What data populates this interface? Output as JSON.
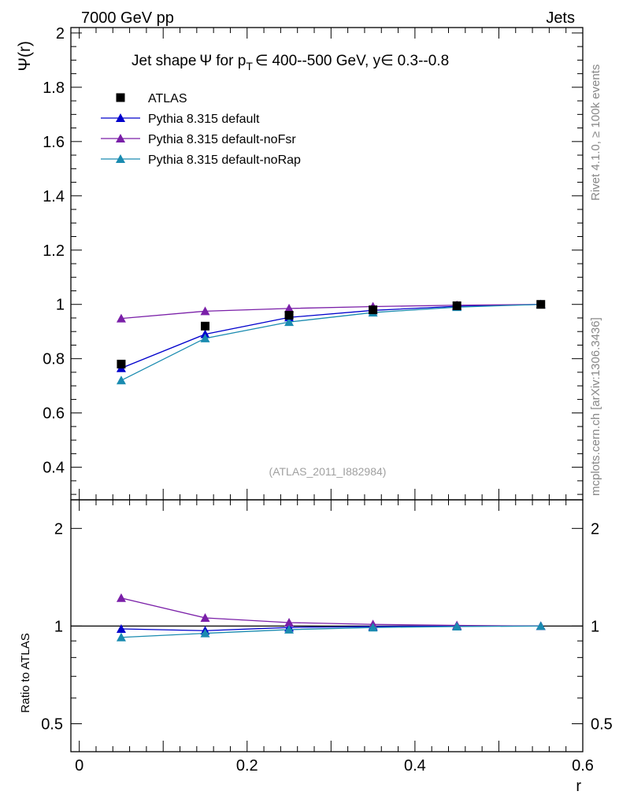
{
  "header": {
    "left": "7000 GeV pp",
    "right": "Jets"
  },
  "side_labels": {
    "rivet": "Rivet 4.1.0, ≥ 100k events",
    "mcplots": "mcplots.cern.ch [arXiv:1306.3436]"
  },
  "chart_data": [
    {
      "type": "line",
      "title_parts": {
        "prefix": "Jet shape",
        "psi": "Ψ",
        "for_p": "for p",
        "sub_T": "T",
        "in1": "∈",
        "pt_range": "400--500 GeV, y",
        "in2": "∈",
        "y_range": "0.3--0.8"
      },
      "ylabel": "Ψ(r)",
      "xlabel": "r",
      "xlim": [
        -0.01,
        0.6
      ],
      "ylim": [
        0.28,
        2.02
      ],
      "yticks": [
        "0.4",
        "0.6",
        "0.8",
        "1",
        "1.2",
        "1.4",
        "1.6",
        "1.8",
        "2"
      ],
      "watermark": "(ATLAS_2011_I882984)",
      "x": [
        0.05,
        0.15,
        0.25,
        0.35,
        0.45,
        0.55
      ],
      "series": [
        {
          "name": "ATLAS",
          "marker": "square",
          "color": "#000000",
          "values": [
            0.78,
            0.92,
            0.96,
            0.98,
            0.995,
            1.0
          ]
        },
        {
          "name": "Pythia 8.315 default",
          "marker": "triangle",
          "color": "#0000cc",
          "values": [
            0.765,
            0.89,
            0.952,
            0.978,
            0.993,
            1.0
          ]
        },
        {
          "name": "Pythia 8.315 default-noFsr",
          "marker": "triangle",
          "color": "#7a1fa8",
          "values": [
            0.948,
            0.975,
            0.985,
            0.992,
            0.997,
            1.0
          ]
        },
        {
          "name": "Pythia 8.315 default-noRap",
          "marker": "triangle",
          "color": "#1a8bb0",
          "values": [
            0.72,
            0.875,
            0.935,
            0.97,
            0.99,
            1.0
          ]
        }
      ]
    },
    {
      "type": "line",
      "ylabel": "Ratio to ATLAS",
      "xlabel": "r",
      "xlim": [
        -0.01,
        0.6
      ],
      "ylim": [
        0.41,
        2.45
      ],
      "yscale": "log",
      "yticks": [
        "0.5",
        "1",
        "2"
      ],
      "xticks": [
        "0",
        "0.2",
        "0.4",
        "0.6"
      ],
      "reference_line": 1,
      "x": [
        0.05,
        0.15,
        0.25,
        0.35,
        0.45,
        0.55
      ],
      "series": [
        {
          "name": "Pythia 8.315 default",
          "color": "#0000cc",
          "values": [
            0.98,
            0.968,
            0.99,
            0.997,
            1.0,
            1.0
          ]
        },
        {
          "name": "Pythia 8.315 default-noFsr",
          "color": "#7a1fa8",
          "values": [
            1.22,
            1.06,
            1.025,
            1.012,
            1.005,
            1.0
          ]
        },
        {
          "name": "Pythia 8.315 default-noRap",
          "color": "#1a8bb0",
          "values": [
            0.923,
            0.95,
            0.975,
            0.99,
            0.997,
            1.0
          ]
        }
      ]
    }
  ]
}
